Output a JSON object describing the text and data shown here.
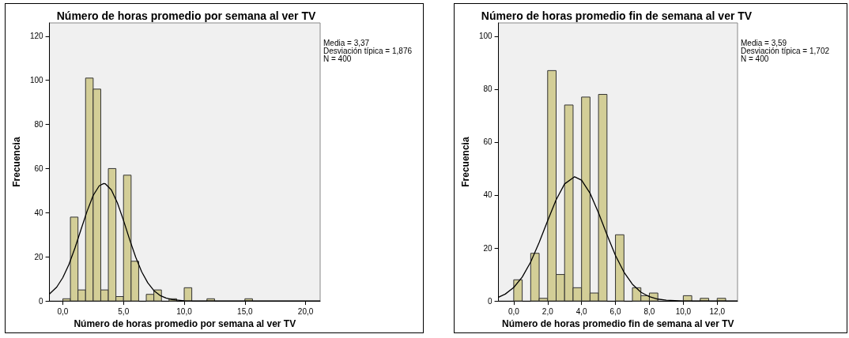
{
  "chart_data": [
    {
      "type": "histogram",
      "title": "Número de horas promedio por semana al ver TV",
      "xlabel": "Número de horas promedio por semana al ver TV",
      "ylabel": "Frecuencia",
      "annotations": [
        "Media = 3,37",
        "Desviación típica = 1,876",
        "N = 400"
      ],
      "xlim": [
        -1.1,
        21.2
      ],
      "xticks": [
        {
          "value": 0,
          "label": "0,0"
        },
        {
          "value": 5,
          "label": "5,0"
        },
        {
          "value": 10,
          "label": "10,0"
        },
        {
          "value": 15,
          "label": "15,0"
        },
        {
          "value": 20,
          "label": "20,0"
        }
      ],
      "ylim": [
        0,
        126
      ],
      "yticks": [
        0,
        20,
        40,
        60,
        80,
        100,
        120
      ],
      "grid": false,
      "series": [
        {
          "type": "histogram",
          "color": "#d3ce97",
          "bins": [
            0,
            0.625,
            1.25,
            1.875,
            2.5,
            3.125,
            3.75,
            4.375,
            5,
            5.625,
            6.25,
            6.875,
            7.5,
            8.125,
            8.75,
            9.375,
            10,
            10.625,
            11.25,
            11.875,
            12.5,
            13.125,
            13.75,
            14.375,
            15,
            15.625
          ],
          "values": [
            1,
            38,
            5,
            101,
            96,
            5,
            60,
            2,
            57,
            18,
            0,
            3,
            5,
            0,
            1,
            0,
            6,
            0,
            0,
            1,
            0,
            0,
            0,
            0,
            1
          ]
        },
        {
          "type": "line",
          "color": "#000000",
          "marker": "none",
          "x": [
            -1.1,
            -0.5,
            0,
            0.5,
            1,
            1.5,
            2,
            2.5,
            3,
            3.37,
            3.5,
            4,
            4.5,
            5,
            5.5,
            6,
            6.5,
            7,
            7.5,
            8,
            8.5,
            9,
            10,
            11,
            21.2
          ],
          "values": [
            3.2,
            6.3,
            10.6,
            16.5,
            24,
            32.4,
            40.7,
            47.8,
            52.2,
            53.2,
            53.1,
            50.3,
            44.4,
            36.5,
            27.9,
            19.9,
            13.2,
            8.2,
            4.7,
            2.5,
            1.3,
            0.6,
            0.1,
            0,
            0
          ]
        }
      ]
    },
    {
      "type": "histogram",
      "title": "Número de horas promedio fin de semana al ver TV",
      "xlabel": "Número de horas promedio fin de semana al ver TV",
      "ylabel": "Frecuencia",
      "annotations": [
        "Media = 3,59",
        "Desviación típica = 1,702",
        "N = 400"
      ],
      "xlim": [
        -0.9,
        13.2
      ],
      "xticks": [
        {
          "value": 0,
          "label": "0,0"
        },
        {
          "value": 2,
          "label": "2,0"
        },
        {
          "value": 4,
          "label": "4,0"
        },
        {
          "value": 6,
          "label": "6,0"
        },
        {
          "value": 8,
          "label": "8,0"
        },
        {
          "value": 10,
          "label": "10,0"
        },
        {
          "value": 12,
          "label": "12,0"
        }
      ],
      "ylim": [
        0,
        105
      ],
      "yticks": [
        0,
        20,
        40,
        60,
        80,
        100
      ],
      "grid": false,
      "series": [
        {
          "type": "histogram",
          "color": "#d3ce97",
          "bins": [
            0,
            0.5,
            1,
            1.5,
            2,
            2.5,
            3,
            3.5,
            4,
            4.5,
            5,
            5.5,
            6,
            6.5,
            7,
            7.5,
            8,
            8.5,
            9,
            9.5,
            10,
            10.5,
            11,
            11.5,
            12,
            12.5
          ],
          "values": [
            8,
            0,
            18,
            1,
            87,
            10,
            74,
            5,
            77,
            3,
            78,
            0,
            25,
            0,
            5,
            2,
            3,
            0,
            0,
            0,
            2,
            0,
            1,
            0,
            1
          ]
        },
        {
          "type": "line",
          "color": "#000000",
          "marker": "none",
          "x": [
            -0.9,
            -0.5,
            0,
            0.5,
            1,
            1.5,
            2,
            2.5,
            3,
            3.59,
            4,
            4.5,
            5,
            5.5,
            6,
            6.5,
            7,
            7.5,
            8,
            8.5,
            9,
            10,
            13.2
          ],
          "values": [
            1.4,
            2.6,
            5.1,
            9,
            14.7,
            22.1,
            30.3,
            38.2,
            44.2,
            46.9,
            45.6,
            40.7,
            33.3,
            25,
            17.2,
            10.9,
            6.3,
            3.3,
            1.6,
            0.7,
            0.3,
            0,
            0
          ]
        }
      ]
    }
  ]
}
